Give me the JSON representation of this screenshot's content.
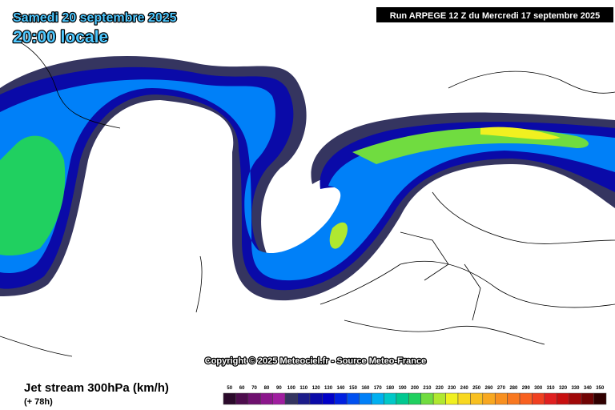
{
  "header": {
    "date": "Samedi 20 septembre 2025",
    "time": "20:00 locale",
    "run": "Run ARPEGE 12 Z du Mercredi 17 septembre 2025"
  },
  "copyright": "Copyright © 2025 Meteociel.fr - Source Meteo-France",
  "footer": {
    "title": "Jet stream 300hPa (km/h)",
    "lead": "(+ 78h)"
  },
  "legend": [
    {
      "label": "50",
      "color": "#2b0a2b"
    },
    {
      "label": "60",
      "color": "#4d0d4d"
    },
    {
      "label": "70",
      "color": "#6e106e"
    },
    {
      "label": "80",
      "color": "#8c168c"
    },
    {
      "label": "90",
      "color": "#a01ea0"
    },
    {
      "label": "100",
      "color": "#353560"
    },
    {
      "label": "110",
      "color": "#1c1c8a"
    },
    {
      "label": "120",
      "color": "#0a0aa8"
    },
    {
      "label": "130",
      "color": "#0000c8"
    },
    {
      "label": "140",
      "color": "#0020e0"
    },
    {
      "label": "150",
      "color": "#0050f0"
    },
    {
      "label": "160",
      "color": "#0080f8"
    },
    {
      "label": "170",
      "color": "#00b0f0"
    },
    {
      "label": "180",
      "color": "#00c8c8"
    },
    {
      "label": "190",
      "color": "#00c890"
    },
    {
      "label": "200",
      "color": "#20d060"
    },
    {
      "label": "210",
      "color": "#70dc40"
    },
    {
      "label": "220",
      "color": "#b0e830"
    },
    {
      "label": "230",
      "color": "#f0f020"
    },
    {
      "label": "240",
      "color": "#f8d820"
    },
    {
      "label": "250",
      "color": "#f8c020"
    },
    {
      "label": "260",
      "color": "#f8a820"
    },
    {
      "label": "270",
      "color": "#f89020"
    },
    {
      "label": "280",
      "color": "#f87820"
    },
    {
      "label": "290",
      "color": "#f86020"
    },
    {
      "label": "300",
      "color": "#f04020"
    },
    {
      "label": "310",
      "color": "#e02020"
    },
    {
      "label": "320",
      "color": "#c81010"
    },
    {
      "label": "330",
      "color": "#a00808"
    },
    {
      "label": "340",
      "color": "#700404"
    },
    {
      "label": "350",
      "color": "#300000"
    }
  ]
}
